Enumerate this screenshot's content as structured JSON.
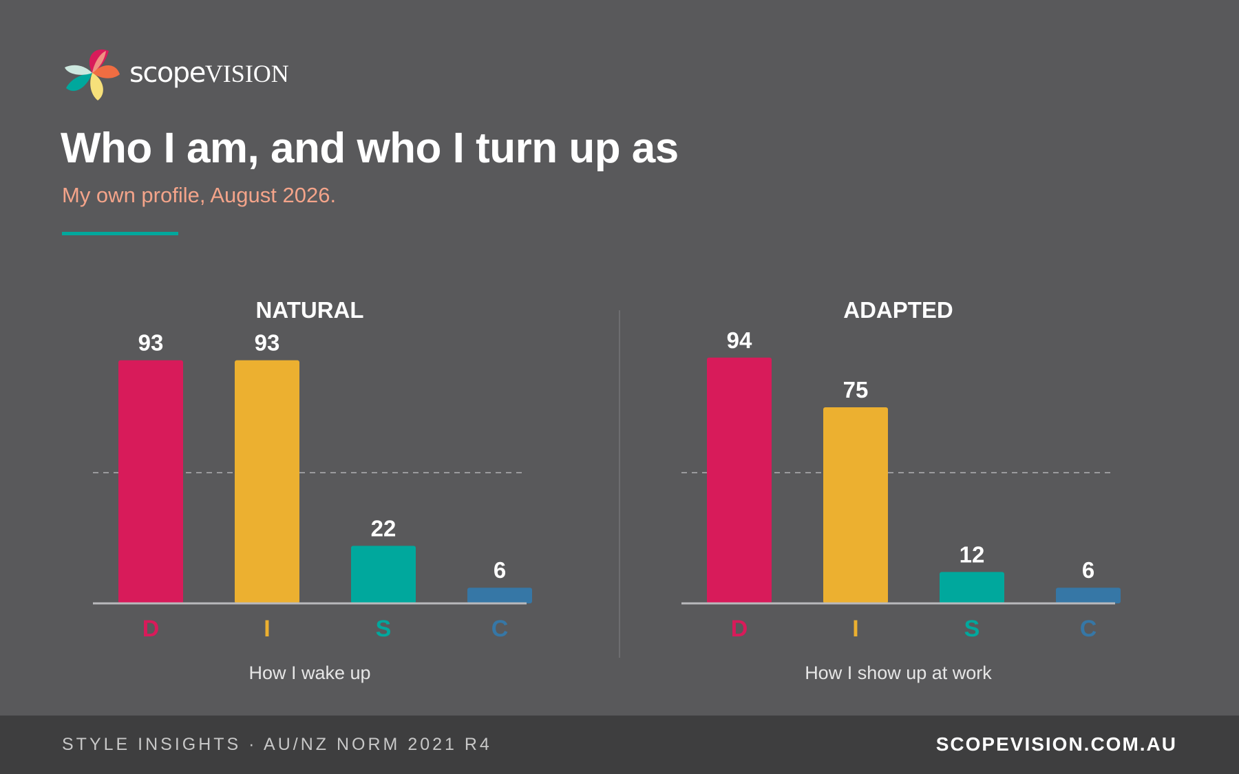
{
  "brand": {
    "wordmark_part1": "scope",
    "wordmark_part2": "VISION",
    "logo_icon": "petal-logo-icon"
  },
  "header": {
    "title": "Who I am, and who I turn up as",
    "subtitle": "My own profile, August 2026."
  },
  "colors": {
    "background": "#59595b",
    "footer_background": "#3e3e3f",
    "accent": "#00a89d",
    "subtitle": "#f4a48a",
    "D": "#d81b5a",
    "I": "#ecb030",
    "S": "#00a89d",
    "C": "#3677a6"
  },
  "chart_data": [
    {
      "type": "bar",
      "title": "NATURAL",
      "caption": "How I wake up",
      "categories": [
        "D",
        "I",
        "S",
        "C"
      ],
      "values": [
        93,
        93,
        22,
        6
      ],
      "ylim": [
        0,
        100
      ],
      "reference_line": 50,
      "grid": false
    },
    {
      "type": "bar",
      "title": "ADAPTED",
      "caption": "How I show up at work",
      "categories": [
        "D",
        "I",
        "S",
        "C"
      ],
      "values": [
        94,
        75,
        12,
        6
      ],
      "ylim": [
        0,
        100
      ],
      "reference_line": 50,
      "grid": false
    }
  ],
  "footer": {
    "left": "STYLE INSIGHTS · AU/NZ NORM 2021 R4",
    "right": "SCOPEVISION.COM.AU"
  }
}
